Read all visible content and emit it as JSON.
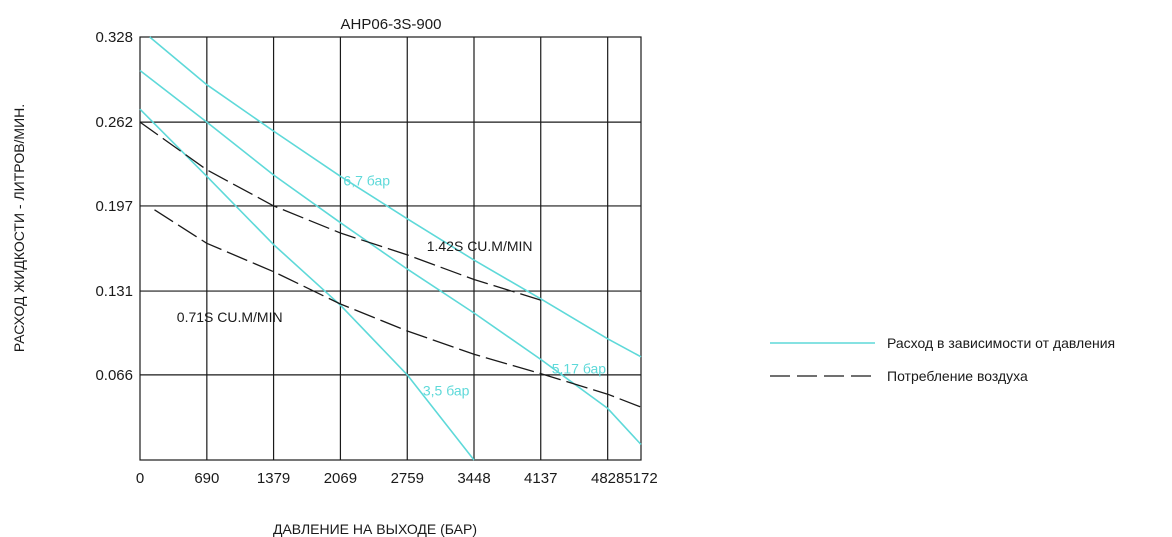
{
  "chart_data": {
    "type": "line",
    "title": "AHP06-3S-900",
    "xlabel": "ДАВЛЕНИЕ НА ВЫХОДЕ (БАР)",
    "ylabel": "РАСХОД ЖИДКОСТИ - ЛИТРОВ/МИН.",
    "xlim": [
      0,
      5172
    ],
    "ylim": [
      0,
      0.328
    ],
    "x_ticks": [
      0,
      690,
      1379,
      2069,
      2759,
      3448,
      4137,
      4828,
      5172
    ],
    "x_tick_labels": [
      "0",
      "690",
      "1379",
      "2069",
      "2759",
      "3448",
      "4137",
      "4828",
      "5172"
    ],
    "y_ticks": [
      0.066,
      0.131,
      0.197,
      0.262,
      0.328
    ],
    "y_tick_labels": [
      "0.066",
      "0.131",
      "0.197",
      "0.262",
      "0.328"
    ],
    "grid": true,
    "legend_position": "right",
    "colors": {
      "flow": "#5ed9d9",
      "air": "#1a1a1a",
      "grid": "#1a1a1a"
    },
    "legend": [
      {
        "label": "Расход в зависимости от давления",
        "style": "solid",
        "color": "#5ed9d9"
      },
      {
        "label": "Потребление воздуха",
        "style": "dashed",
        "color": "#1a1a1a"
      }
    ],
    "series": [
      {
        "name": "6,7 бар",
        "kind": "flow",
        "x": [
          100,
          690,
          1379,
          2069,
          2759,
          3448,
          4137,
          4828,
          5172
        ],
        "y": [
          0.328,
          0.291,
          0.255,
          0.22,
          0.187,
          0.155,
          0.125,
          0.094,
          0.08
        ]
      },
      {
        "name": "5,17 бар",
        "kind": "flow",
        "x": [
          0,
          690,
          1379,
          2069,
          2759,
          3448,
          4137,
          4828,
          5172
        ],
        "y": [
          0.302,
          0.262,
          0.221,
          0.184,
          0.148,
          0.114,
          0.078,
          0.04,
          0.012
        ]
      },
      {
        "name": "3,5 бар",
        "kind": "flow",
        "x": [
          0,
          690,
          1379,
          2069,
          2759,
          3448
        ],
        "y": [
          0.272,
          0.22,
          0.167,
          0.12,
          0.066,
          0.0
        ]
      },
      {
        "name": "1.42S CU.M/MIN",
        "kind": "air",
        "x": [
          0,
          690,
          1379,
          2069,
          2759,
          3448,
          4137
        ],
        "y": [
          0.262,
          0.225,
          0.197,
          0.176,
          0.159,
          0.14,
          0.124
        ]
      },
      {
        "name": "0.71S CU.M/MIN",
        "kind": "air",
        "x": [
          150,
          690,
          1379,
          2069,
          2759,
          3448,
          4137,
          4828,
          5172
        ],
        "y": [
          0.194,
          0.168,
          0.146,
          0.121,
          0.1,
          0.082,
          0.067,
          0.051,
          0.041
        ]
      }
    ],
    "annotations": [
      {
        "text": "6,7 бар",
        "x": 2100,
        "y": 0.213,
        "color": "#5ed9d9"
      },
      {
        "text": "1.42S CU.M/MIN",
        "x": 2960,
        "y": 0.162,
        "color": "#1a1a1a"
      },
      {
        "text": "0.71S CU.M/MIN",
        "x": 380,
        "y": 0.107,
        "color": "#1a1a1a"
      },
      {
        "text": "5,17 бар",
        "x": 4250,
        "y": 0.067,
        "color": "#5ed9d9"
      },
      {
        "text": "3,5 бар",
        "x": 2920,
        "y": 0.05,
        "color": "#5ed9d9"
      }
    ]
  }
}
